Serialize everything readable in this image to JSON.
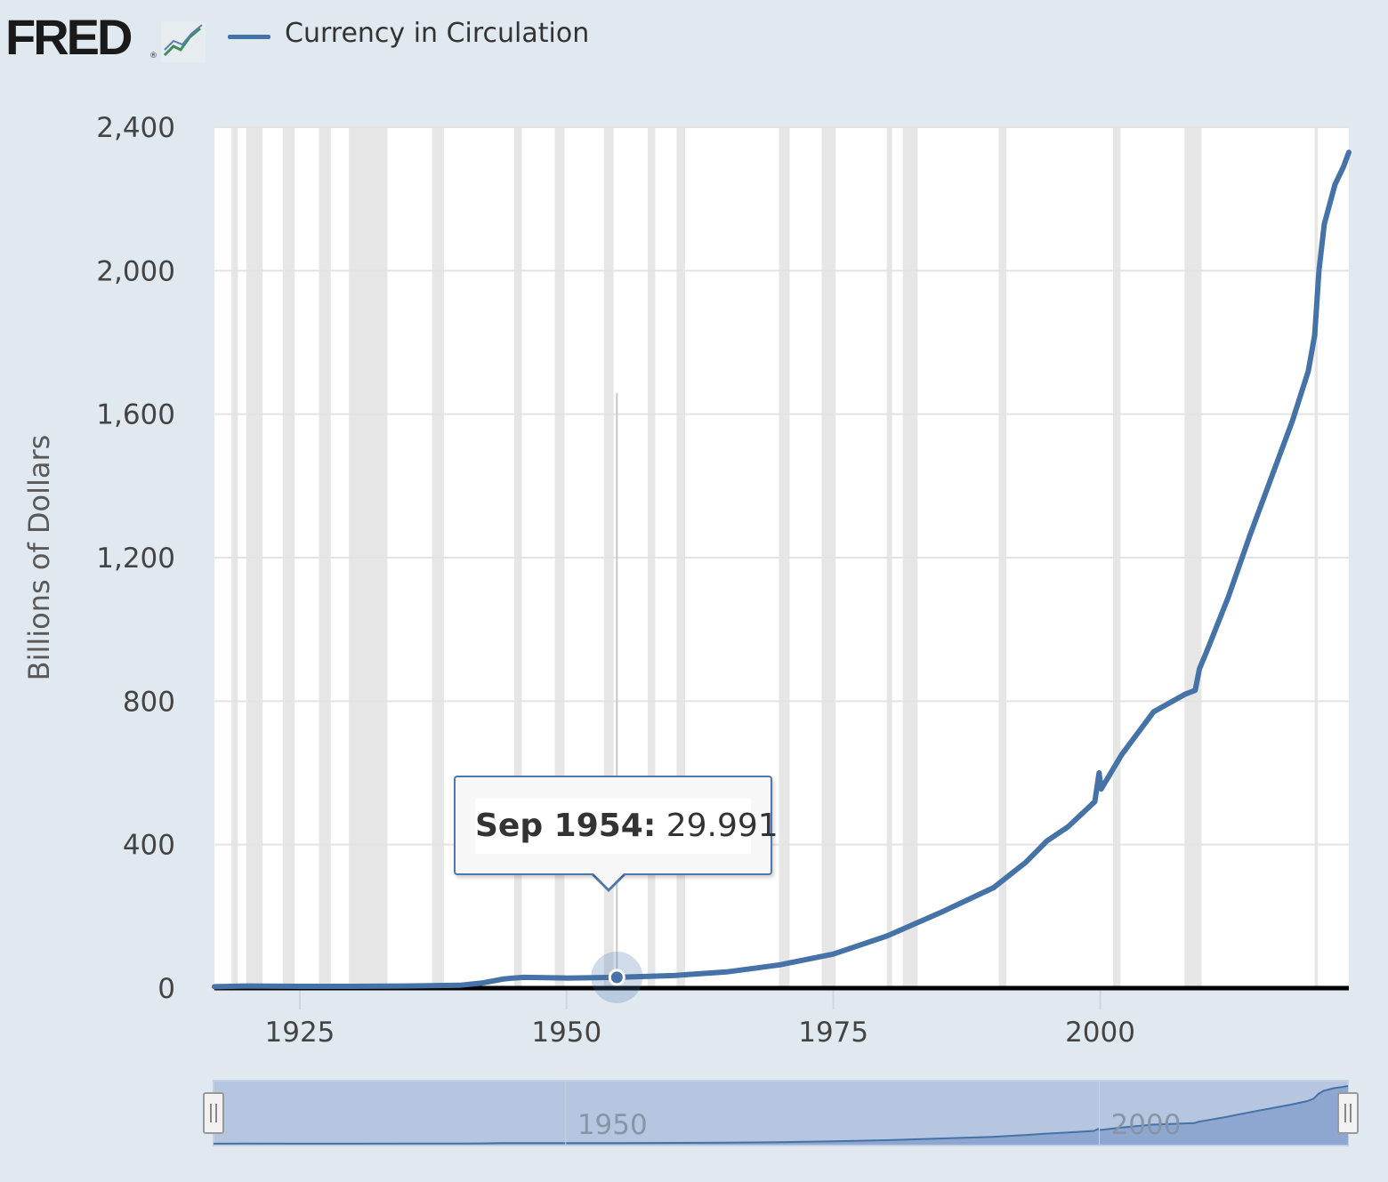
{
  "header": {
    "logo_text": "FRED",
    "logo_mark": "®",
    "logo_icon": "line-chart-icon",
    "legend_label": "Currency in Circulation"
  },
  "colors": {
    "background": "#e1e9f0",
    "plot_background": "#ffffff",
    "series": "#4572a7",
    "recession": "#e6e6e6",
    "navigator_fill": "#b7c6e0",
    "navigator_area": "#7f9ccb"
  },
  "tooltip": {
    "date": "Sep 1954:",
    "value": "29.991"
  },
  "navigator": {
    "labels": [
      "1950",
      "2000"
    ]
  },
  "chart_data": {
    "type": "line",
    "title": "",
    "ylabel": "Billions of Dollars",
    "xlabel": "",
    "xlim": [
      1917.0,
      2023.3
    ],
    "ylim": [
      0,
      2400
    ],
    "yticks": [
      0,
      400,
      800,
      1200,
      1600,
      2000,
      2400
    ],
    "ytick_labels": [
      "0",
      "400",
      "800",
      "1,200",
      "1,600",
      "2,000",
      "2,400"
    ],
    "xticks": [
      1925,
      1950,
      1975,
      2000
    ],
    "xtick_labels": [
      "1925",
      "1950",
      "1975",
      "2000"
    ],
    "grid": true,
    "legend": "top-left",
    "recessions": [
      [
        1918.6,
        1919.2
      ],
      [
        1920.0,
        1921.5
      ],
      [
        1923.4,
        1924.5
      ],
      [
        1926.8,
        1927.9
      ],
      [
        1929.6,
        1933.2
      ],
      [
        1937.4,
        1938.5
      ],
      [
        1945.1,
        1945.8
      ],
      [
        1948.9,
        1949.8
      ],
      [
        1953.5,
        1954.4
      ],
      [
        1957.6,
        1958.3
      ],
      [
        1960.3,
        1961.1
      ],
      [
        1969.9,
        1970.9
      ],
      [
        1973.9,
        1975.2
      ],
      [
        1980.0,
        1980.5
      ],
      [
        1981.5,
        1982.9
      ],
      [
        1990.5,
        1991.2
      ],
      [
        2001.2,
        2001.9
      ],
      [
        2007.9,
        2009.5
      ],
      [
        2020.1,
        2020.4
      ]
    ],
    "series": [
      {
        "name": "Currency in Circulation",
        "x": [
          1917.0,
          1920,
          1925,
          1930,
          1935,
          1940,
          1942,
          1944,
          1945,
          1946,
          1950,
          1954.71,
          1960,
          1965,
          1970,
          1975,
          1980,
          1985,
          1990,
          1993,
          1995,
          1997,
          1999.5,
          1999.9,
          2000.1,
          2002,
          2005,
          2008,
          2008.9,
          2009.3,
          2010,
          2012,
          2014,
          2016,
          2018,
          2019.5,
          2020.1,
          2020.5,
          2021,
          2022,
          2022.8,
          2023.3
        ],
        "y": [
          4,
          6,
          5,
          5,
          6,
          8,
          14,
          25,
          28,
          30,
          28,
          29.991,
          35,
          45,
          65,
          95,
          145,
          210,
          280,
          350,
          410,
          450,
          520,
          600,
          555,
          650,
          770,
          820,
          830,
          890,
          940,
          1090,
          1260,
          1420,
          1580,
          1720,
          1820,
          2000,
          2130,
          2240,
          2290,
          2330
        ]
      }
    ]
  }
}
